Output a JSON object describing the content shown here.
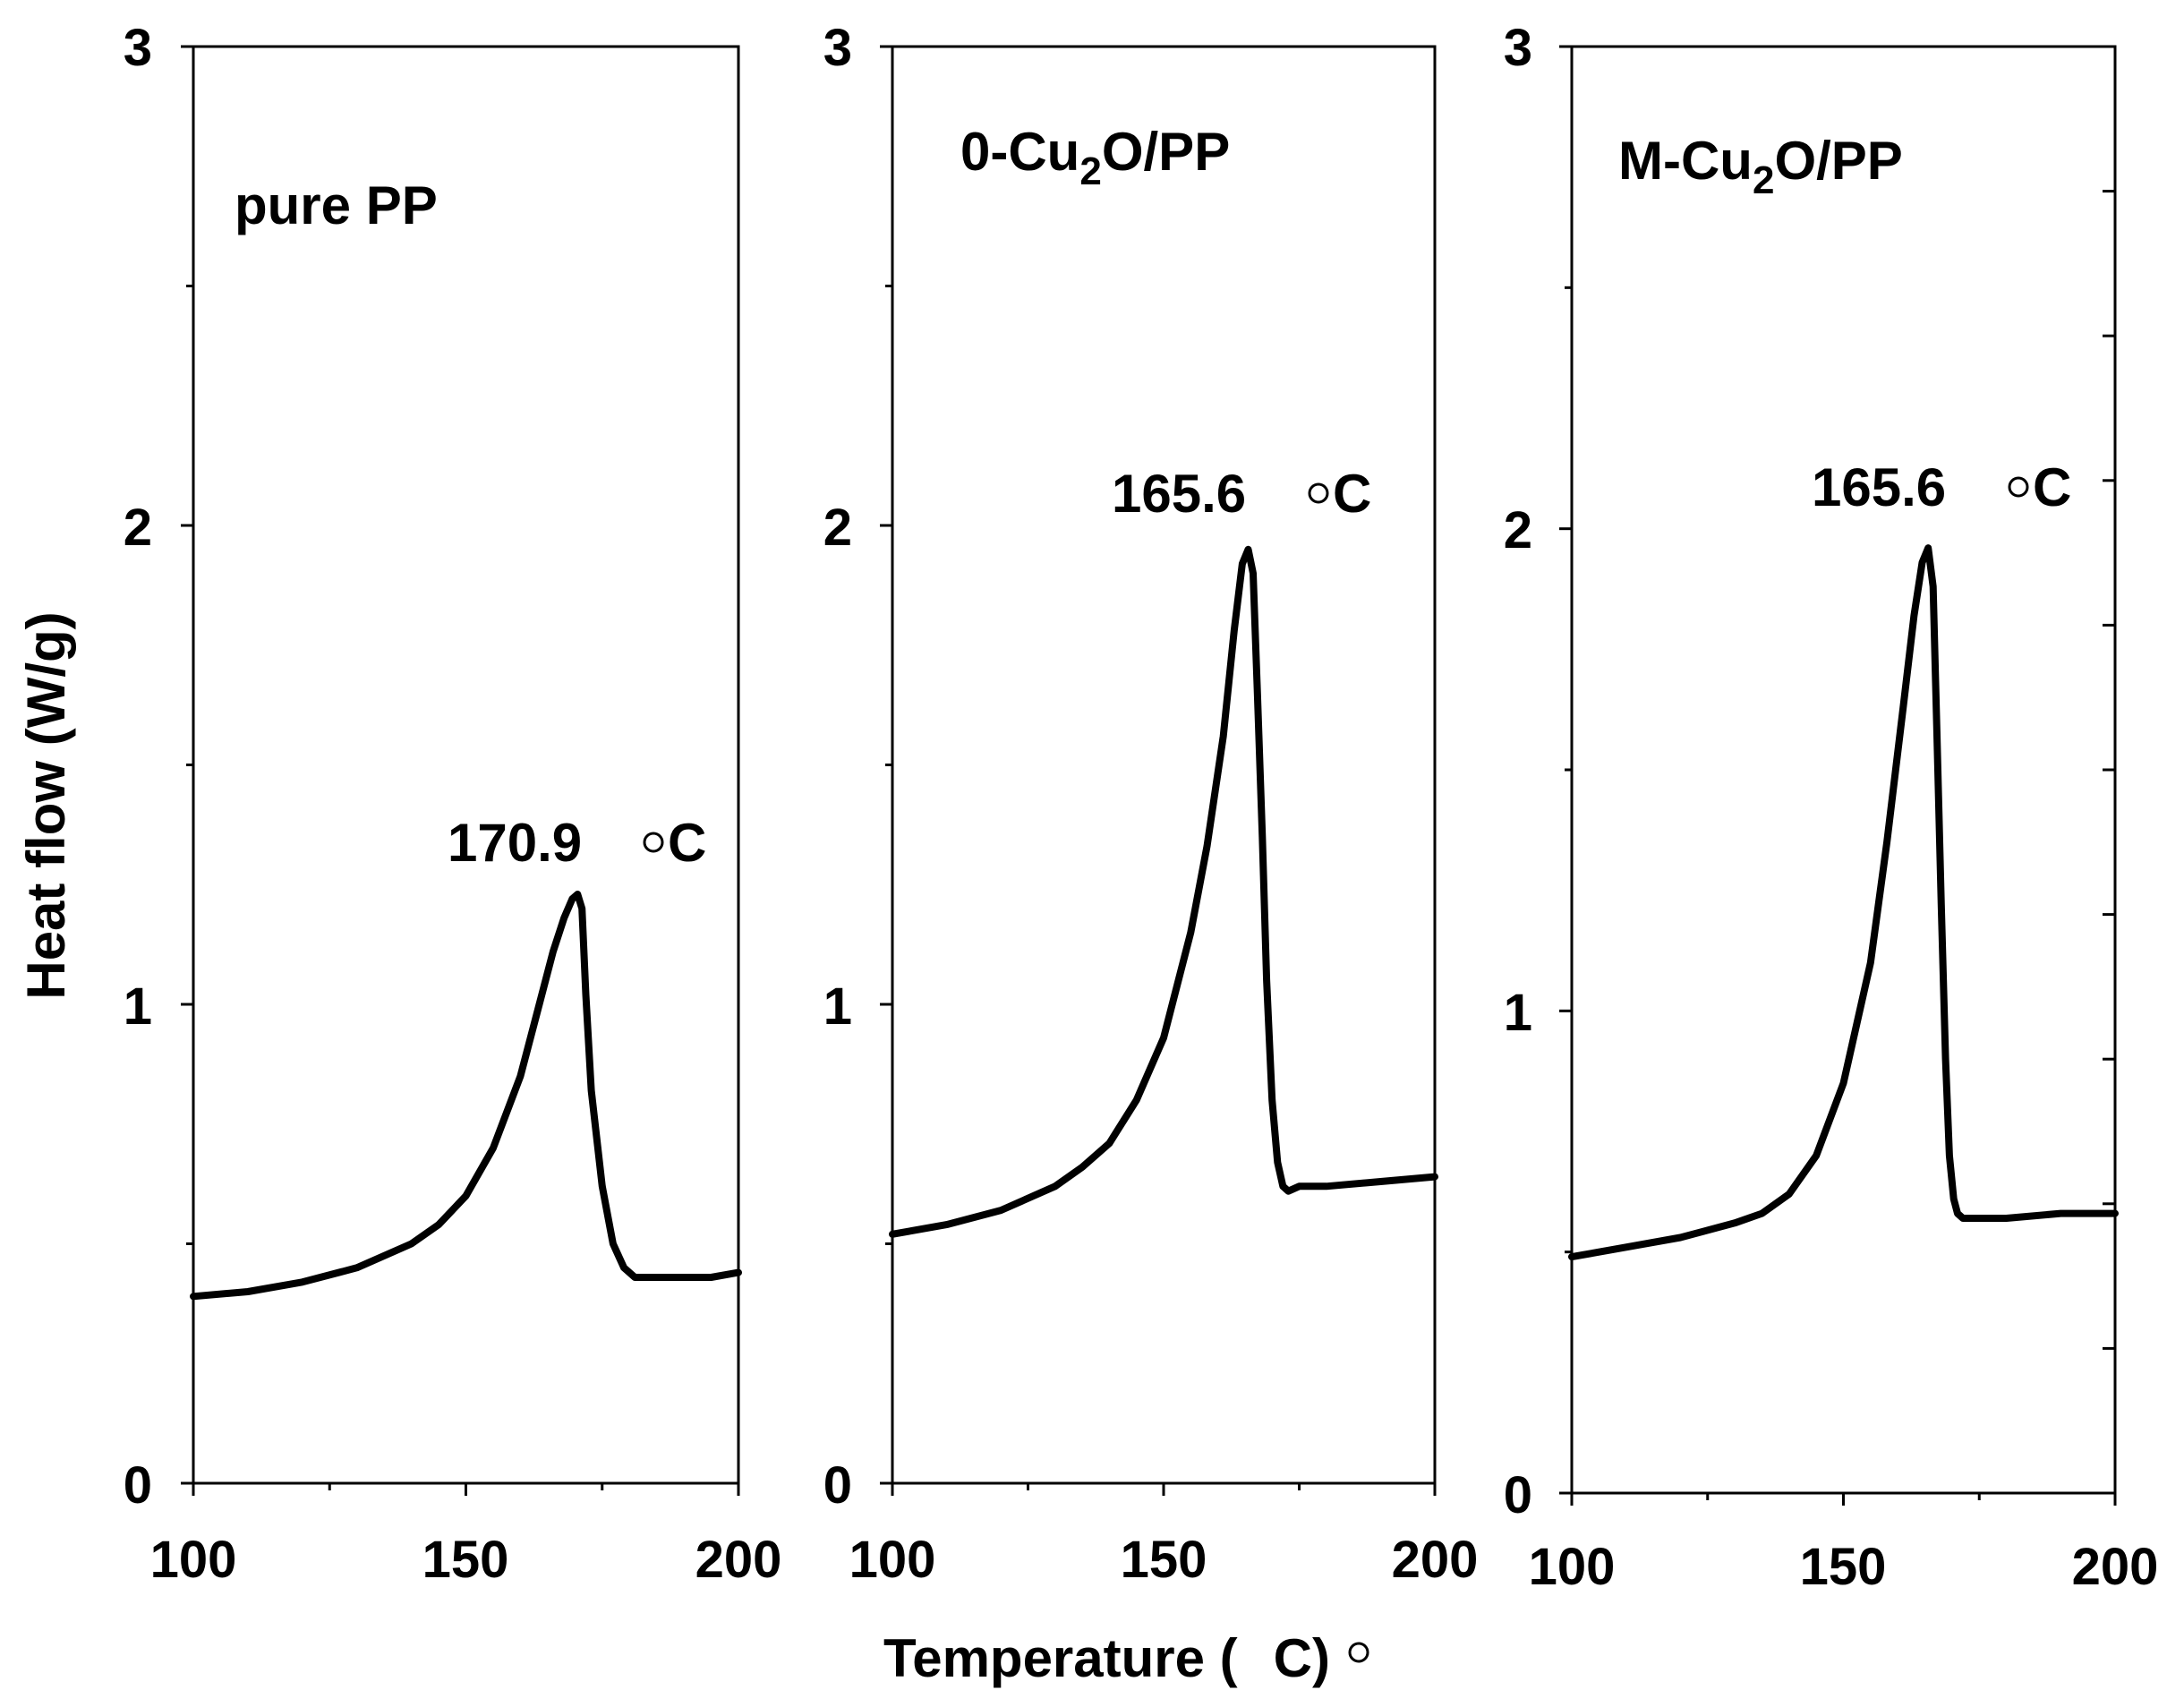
{
  "chart_data": [
    {
      "type": "line",
      "panel_label": {
        "prefix": "pure PP",
        "sub": "",
        "suffix": ""
      },
      "peak_label": {
        "value": "170.9",
        "unit": "C"
      },
      "xlabel": "",
      "ylabel": "Heat flow (W/g)",
      "xlim": [
        100,
        200
      ],
      "ylim": [
        0,
        3
      ],
      "x_ticks": [
        "100",
        "150",
        "200"
      ],
      "y_ticks": [
        "0",
        "1",
        "2",
        "3"
      ],
      "series": [
        {
          "name": "pure PP",
          "x": [
            100,
            110,
            120,
            130,
            140,
            145,
            150,
            155,
            160,
            163,
            166,
            168,
            169.5,
            170.5,
            171.3,
            172,
            173,
            175,
            177,
            179,
            181,
            183,
            185,
            190,
            195,
            200
          ],
          "y": [
            0.39,
            0.4,
            0.42,
            0.45,
            0.5,
            0.54,
            0.6,
            0.7,
            0.85,
            0.98,
            1.11,
            1.18,
            1.22,
            1.23,
            1.2,
            1.02,
            0.82,
            0.62,
            0.5,
            0.45,
            0.43,
            0.43,
            0.43,
            0.43,
            0.43,
            0.44
          ]
        }
      ]
    },
    {
      "type": "line",
      "panel_label": {
        "prefix": "0-Cu",
        "sub": "2",
        "suffix": "O/PP"
      },
      "peak_label": {
        "value": "165.6",
        "unit": "C"
      },
      "xlabel": "Temperature (",
      "xlabel_unit": "C)",
      "ylabel": "",
      "xlim": [
        100,
        200
      ],
      "ylim": [
        0,
        3
      ],
      "x_ticks": [
        "100",
        "150",
        "200"
      ],
      "y_ticks": [
        "0",
        "1",
        "2",
        "3"
      ],
      "series": [
        {
          "name": "0-Cu2O/PP",
          "x": [
            100,
            110,
            120,
            130,
            135,
            140,
            145,
            150,
            155,
            158,
            161,
            163,
            164.5,
            165.6,
            166.5,
            167.3,
            168.2,
            169,
            170,
            171,
            172,
            173,
            175,
            180,
            190,
            200
          ],
          "y": [
            0.52,
            0.54,
            0.57,
            0.62,
            0.66,
            0.71,
            0.8,
            0.93,
            1.15,
            1.33,
            1.56,
            1.78,
            1.92,
            1.95,
            1.9,
            1.65,
            1.35,
            1.05,
            0.8,
            0.67,
            0.62,
            0.61,
            0.62,
            0.62,
            0.63,
            0.64
          ]
        }
      ]
    },
    {
      "type": "line",
      "panel_label": {
        "prefix": "M-Cu",
        "sub": "2",
        "suffix": "O/PP"
      },
      "peak_label": {
        "value": "165.6",
        "unit": "C"
      },
      "xlabel": "",
      "ylabel": "",
      "xlim": [
        100,
        200
      ],
      "ylim": [
        0,
        3
      ],
      "x_ticks": [
        "100",
        "150",
        "200"
      ],
      "y_ticks": [
        "0",
        "1",
        "2",
        "3"
      ],
      "series": [
        {
          "name": "M-Cu2O/PP",
          "x": [
            100,
            110,
            120,
            130,
            135,
            140,
            145,
            150,
            155,
            158,
            161,
            163,
            164.5,
            165.6,
            166.5,
            167.2,
            168,
            168.8,
            169.5,
            170.3,
            171,
            172,
            175,
            180,
            190,
            200
          ],
          "y": [
            0.49,
            0.51,
            0.53,
            0.56,
            0.58,
            0.62,
            0.7,
            0.85,
            1.1,
            1.35,
            1.63,
            1.82,
            1.93,
            1.96,
            1.88,
            1.58,
            1.22,
            0.9,
            0.7,
            0.61,
            0.58,
            0.57,
            0.57,
            0.57,
            0.58,
            0.58
          ]
        }
      ]
    }
  ]
}
